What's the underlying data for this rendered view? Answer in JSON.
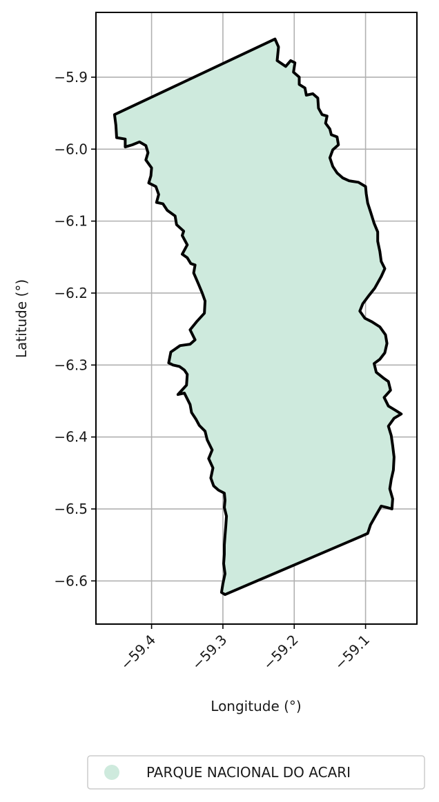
{
  "chart_data": {
    "type": "map",
    "xlabel": "Longitude (°)",
    "ylabel": "Latitude (°)",
    "xlim": [
      -59.478,
      -59.028
    ],
    "ylim": [
      -6.66,
      -5.81
    ],
    "x_ticks": [
      {
        "value": -59.4,
        "label": "−59.4"
      },
      {
        "value": -59.3,
        "label": "−59.3"
      },
      {
        "value": -59.2,
        "label": "−59.2"
      },
      {
        "value": -59.1,
        "label": "−59.1"
      }
    ],
    "y_ticks": [
      {
        "value": -5.9,
        "label": "−5.9"
      },
      {
        "value": -6.0,
        "label": "−6.0"
      },
      {
        "value": -6.1,
        "label": "−6.1"
      },
      {
        "value": -6.2,
        "label": "−6.2"
      },
      {
        "value": -6.3,
        "label": "−6.3"
      },
      {
        "value": -6.4,
        "label": "−6.4"
      },
      {
        "value": -6.5,
        "label": "−6.5"
      },
      {
        "value": -6.6,
        "label": "−6.6"
      }
    ],
    "grid": true,
    "legend_position": "bottom",
    "fill_color": "#ceeadd",
    "edge_color": "#000000",
    "region": {
      "name": "PARQUE NACIONAL DO ACARI",
      "boundary": [
        [
          -59.227,
          -5.847
        ],
        [
          -59.222,
          -5.858
        ],
        [
          -59.224,
          -5.877
        ],
        [
          -59.212,
          -5.885
        ],
        [
          -59.205,
          -5.877
        ],
        [
          -59.199,
          -5.88
        ],
        [
          -59.201,
          -5.893
        ],
        [
          -59.193,
          -5.9
        ],
        [
          -59.193,
          -5.91
        ],
        [
          -59.185,
          -5.915
        ],
        [
          -59.183,
          -5.925
        ],
        [
          -59.174,
          -5.923
        ],
        [
          -59.167,
          -5.929
        ],
        [
          -59.166,
          -5.943
        ],
        [
          -59.161,
          -5.952
        ],
        [
          -59.154,
          -5.954
        ],
        [
          -59.156,
          -5.964
        ],
        [
          -59.15,
          -5.972
        ],
        [
          -59.148,
          -5.98
        ],
        [
          -59.14,
          -5.983
        ],
        [
          -59.138,
          -5.994
        ],
        [
          -59.146,
          -6.001
        ],
        [
          -59.15,
          -6.012
        ],
        [
          -59.146,
          -6.024
        ],
        [
          -59.14,
          -6.033
        ],
        [
          -59.132,
          -6.04
        ],
        [
          -59.123,
          -6.044
        ],
        [
          -59.11,
          -6.046
        ],
        [
          -59.1,
          -6.052
        ],
        [
          -59.099,
          -6.062
        ],
        [
          -59.097,
          -6.075
        ],
        [
          -59.093,
          -6.087
        ],
        [
          -59.088,
          -6.103
        ],
        [
          -59.083,
          -6.115
        ],
        [
          -59.083,
          -6.128
        ],
        [
          -59.08,
          -6.142
        ],
        [
          -59.078,
          -6.156
        ],
        [
          -59.073,
          -6.166
        ],
        [
          -59.078,
          -6.177
        ],
        [
          -59.087,
          -6.193
        ],
        [
          -59.095,
          -6.203
        ],
        [
          -59.104,
          -6.215
        ],
        [
          -59.108,
          -6.225
        ],
        [
          -59.101,
          -6.235
        ],
        [
          -59.091,
          -6.24
        ],
        [
          -59.08,
          -6.247
        ],
        [
          -59.072,
          -6.258
        ],
        [
          -59.07,
          -6.27
        ],
        [
          -59.073,
          -6.283
        ],
        [
          -59.08,
          -6.292
        ],
        [
          -59.088,
          -6.298
        ],
        [
          -59.085,
          -6.31
        ],
        [
          -59.075,
          -6.318
        ],
        [
          -59.068,
          -6.323
        ],
        [
          -59.065,
          -6.335
        ],
        [
          -59.074,
          -6.345
        ],
        [
          -59.068,
          -6.357
        ],
        [
          -59.058,
          -6.363
        ],
        [
          -59.05,
          -6.368
        ],
        [
          -59.06,
          -6.374
        ],
        [
          -59.068,
          -6.385
        ],
        [
          -59.064,
          -6.398
        ],
        [
          -59.062,
          -6.412
        ],
        [
          -59.06,
          -6.428
        ],
        [
          -59.061,
          -6.446
        ],
        [
          -59.064,
          -6.459
        ],
        [
          -59.066,
          -6.472
        ],
        [
          -59.062,
          -6.486
        ],
        [
          -59.063,
          -6.5
        ],
        [
          -59.07,
          -6.498
        ],
        [
          -59.078,
          -6.496
        ],
        [
          -59.085,
          -6.508
        ],
        [
          -59.093,
          -6.522
        ],
        [
          -59.097,
          -6.534
        ],
        [
          -59.106,
          -6.538
        ],
        [
          -59.297,
          -6.619
        ],
        [
          -59.302,
          -6.616
        ],
        [
          -59.3,
          -6.604
        ],
        [
          -59.297,
          -6.59
        ],
        [
          -59.299,
          -6.576
        ],
        [
          -59.298,
          -6.563
        ],
        [
          -59.298,
          -6.55
        ],
        [
          -59.297,
          -6.537
        ],
        [
          -59.296,
          -6.524
        ],
        [
          -59.295,
          -6.51
        ],
        [
          -59.298,
          -6.498
        ],
        [
          -59.297,
          -6.488
        ],
        [
          -59.298,
          -6.478
        ],
        [
          -59.306,
          -6.474
        ],
        [
          -59.313,
          -6.468
        ],
        [
          -59.317,
          -6.457
        ],
        [
          -59.314,
          -6.443
        ],
        [
          -59.32,
          -6.43
        ],
        [
          -59.315,
          -6.418
        ],
        [
          -59.322,
          -6.404
        ],
        [
          -59.325,
          -6.392
        ],
        [
          -59.333,
          -6.384
        ],
        [
          -59.338,
          -6.375
        ],
        [
          -59.344,
          -6.366
        ],
        [
          -59.346,
          -6.355
        ],
        [
          -59.354,
          -6.339
        ],
        [
          -59.363,
          -6.341
        ],
        [
          -59.351,
          -6.328
        ],
        [
          -59.35,
          -6.313
        ],
        [
          -59.354,
          -6.307
        ],
        [
          -59.361,
          -6.302
        ],
        [
          -59.37,
          -6.3
        ],
        [
          -59.376,
          -6.297
        ],
        [
          -59.373,
          -6.282
        ],
        [
          -59.36,
          -6.273
        ],
        [
          -59.346,
          -6.271
        ],
        [
          -59.339,
          -6.265
        ],
        [
          -59.346,
          -6.251
        ],
        [
          -59.337,
          -6.24
        ],
        [
          -59.326,
          -6.228
        ],
        [
          -59.325,
          -6.211
        ],
        [
          -59.329,
          -6.2
        ],
        [
          -59.334,
          -6.188
        ],
        [
          -59.341,
          -6.172
        ],
        [
          -59.339,
          -6.161
        ],
        [
          -59.345,
          -6.159
        ],
        [
          -59.35,
          -6.151
        ],
        [
          -59.357,
          -6.146
        ],
        [
          -59.35,
          -6.133
        ],
        [
          -59.357,
          -6.12
        ],
        [
          -59.355,
          -6.114
        ],
        [
          -59.365,
          -6.105
        ],
        [
          -59.367,
          -6.093
        ],
        [
          -59.378,
          -6.085
        ],
        [
          -59.384,
          -6.076
        ],
        [
          -59.393,
          -6.074
        ],
        [
          -59.39,
          -6.063
        ],
        [
          -59.394,
          -6.052
        ],
        [
          -59.404,
          -6.047
        ],
        [
          -59.401,
          -6.037
        ],
        [
          -59.4,
          -6.026
        ],
        [
          -59.408,
          -6.015
        ],
        [
          -59.405,
          -6.005
        ],
        [
          -59.408,
          -5.995
        ],
        [
          -59.417,
          -5.99
        ],
        [
          -59.427,
          -5.994
        ],
        [
          -59.437,
          -5.997
        ],
        [
          -59.437,
          -5.986
        ],
        [
          -59.449,
          -5.984
        ],
        [
          -59.45,
          -5.967
        ],
        [
          -59.452,
          -5.952
        ],
        [
          -59.227,
          -5.847
        ]
      ]
    },
    "legend": [
      {
        "label": "PARQUE NACIONAL DO ACARI",
        "color": "#ceeadd"
      }
    ]
  }
}
